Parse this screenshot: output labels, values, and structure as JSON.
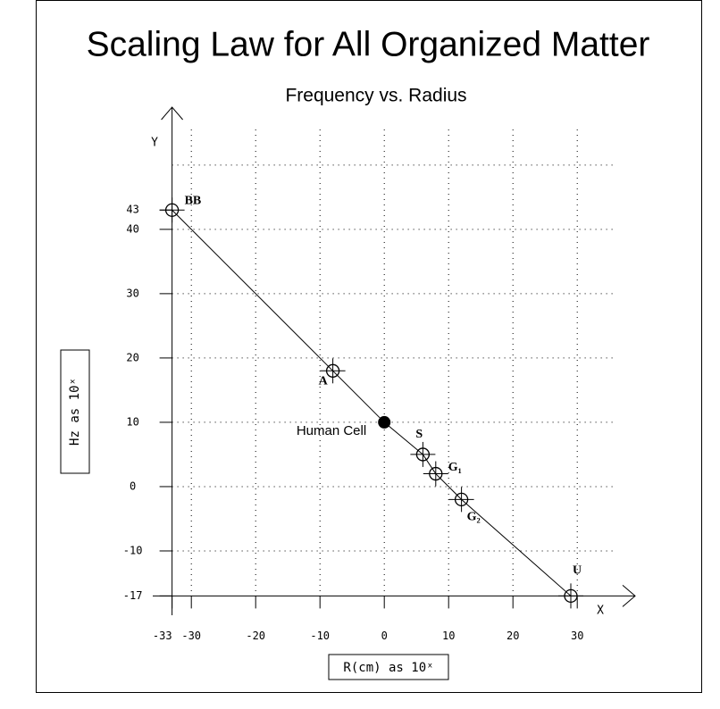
{
  "chart_data": {
    "type": "scatter",
    "title": "Scaling Law for All Organized Matter",
    "subtitle": "Frequency vs. Radius",
    "x_axis_name": "X",
    "y_axis_name": "Y",
    "x_label": "R(cm) as 10ˣ",
    "y_label": "Hz as 10ˣ",
    "xlim": [
      -36,
      39
    ],
    "ylim": [
      -20,
      59
    ],
    "xticks": [
      -33,
      -30,
      -20,
      -10,
      0,
      10,
      20,
      30
    ],
    "yticks": [
      -17,
      -10,
      0,
      10,
      20,
      30,
      40,
      43
    ],
    "xgrid": [
      -30,
      -20,
      -10,
      0,
      10,
      20,
      30
    ],
    "ygrid": [
      -10,
      0,
      10,
      20,
      30,
      40,
      50
    ],
    "grid": true,
    "connect_points": true,
    "color": "#000000",
    "points": {
      "labels": [
        "BB",
        "A",
        "Human Cell",
        "S",
        "G₁",
        "G₂",
        "U"
      ],
      "x": [
        -33,
        -8,
        0,
        6,
        8,
        12,
        29
      ],
      "y": [
        43,
        18,
        10,
        5,
        2,
        -2,
        -17
      ],
      "filled": [
        false,
        false,
        true,
        false,
        false,
        false,
        false
      ]
    }
  }
}
